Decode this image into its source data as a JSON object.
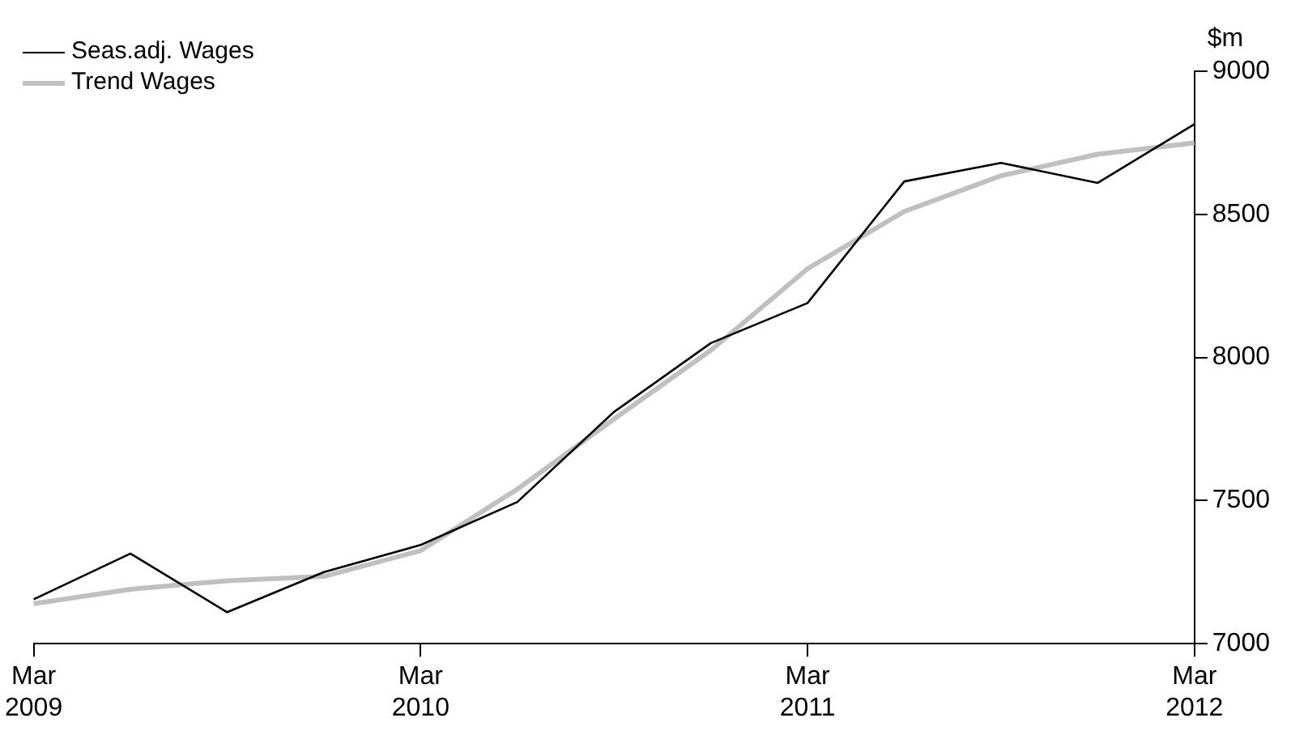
{
  "chart_data": {
    "type": "line",
    "ylabel": "$m",
    "categories": [
      "Mar 2009",
      null,
      null,
      null,
      "Mar 2010",
      null,
      null,
      null,
      "Mar 2011",
      null,
      null,
      null,
      "Mar 2012"
    ],
    "series": [
      {
        "name": "Seas.adj. Wages",
        "color": "#000000",
        "values": [
          7155,
          7315,
          7110,
          7250,
          7345,
          7495,
          7810,
          8050,
          8190,
          8615,
          8680,
          8610,
          8815
        ]
      },
      {
        "name": "Trend Wages",
        "color": "#c0c0c0",
        "values": [
          7140,
          7190,
          7220,
          7235,
          7325,
          7540,
          7785,
          8025,
          8310,
          8510,
          8635,
          8710,
          8750
        ]
      }
    ],
    "ylim": [
      7000,
      9000
    ],
    "yticks": [
      7000,
      7500,
      8000,
      8500,
      9000
    ],
    "grid": false,
    "legend": "top left",
    "marker": "none",
    "line_style": "solid"
  }
}
